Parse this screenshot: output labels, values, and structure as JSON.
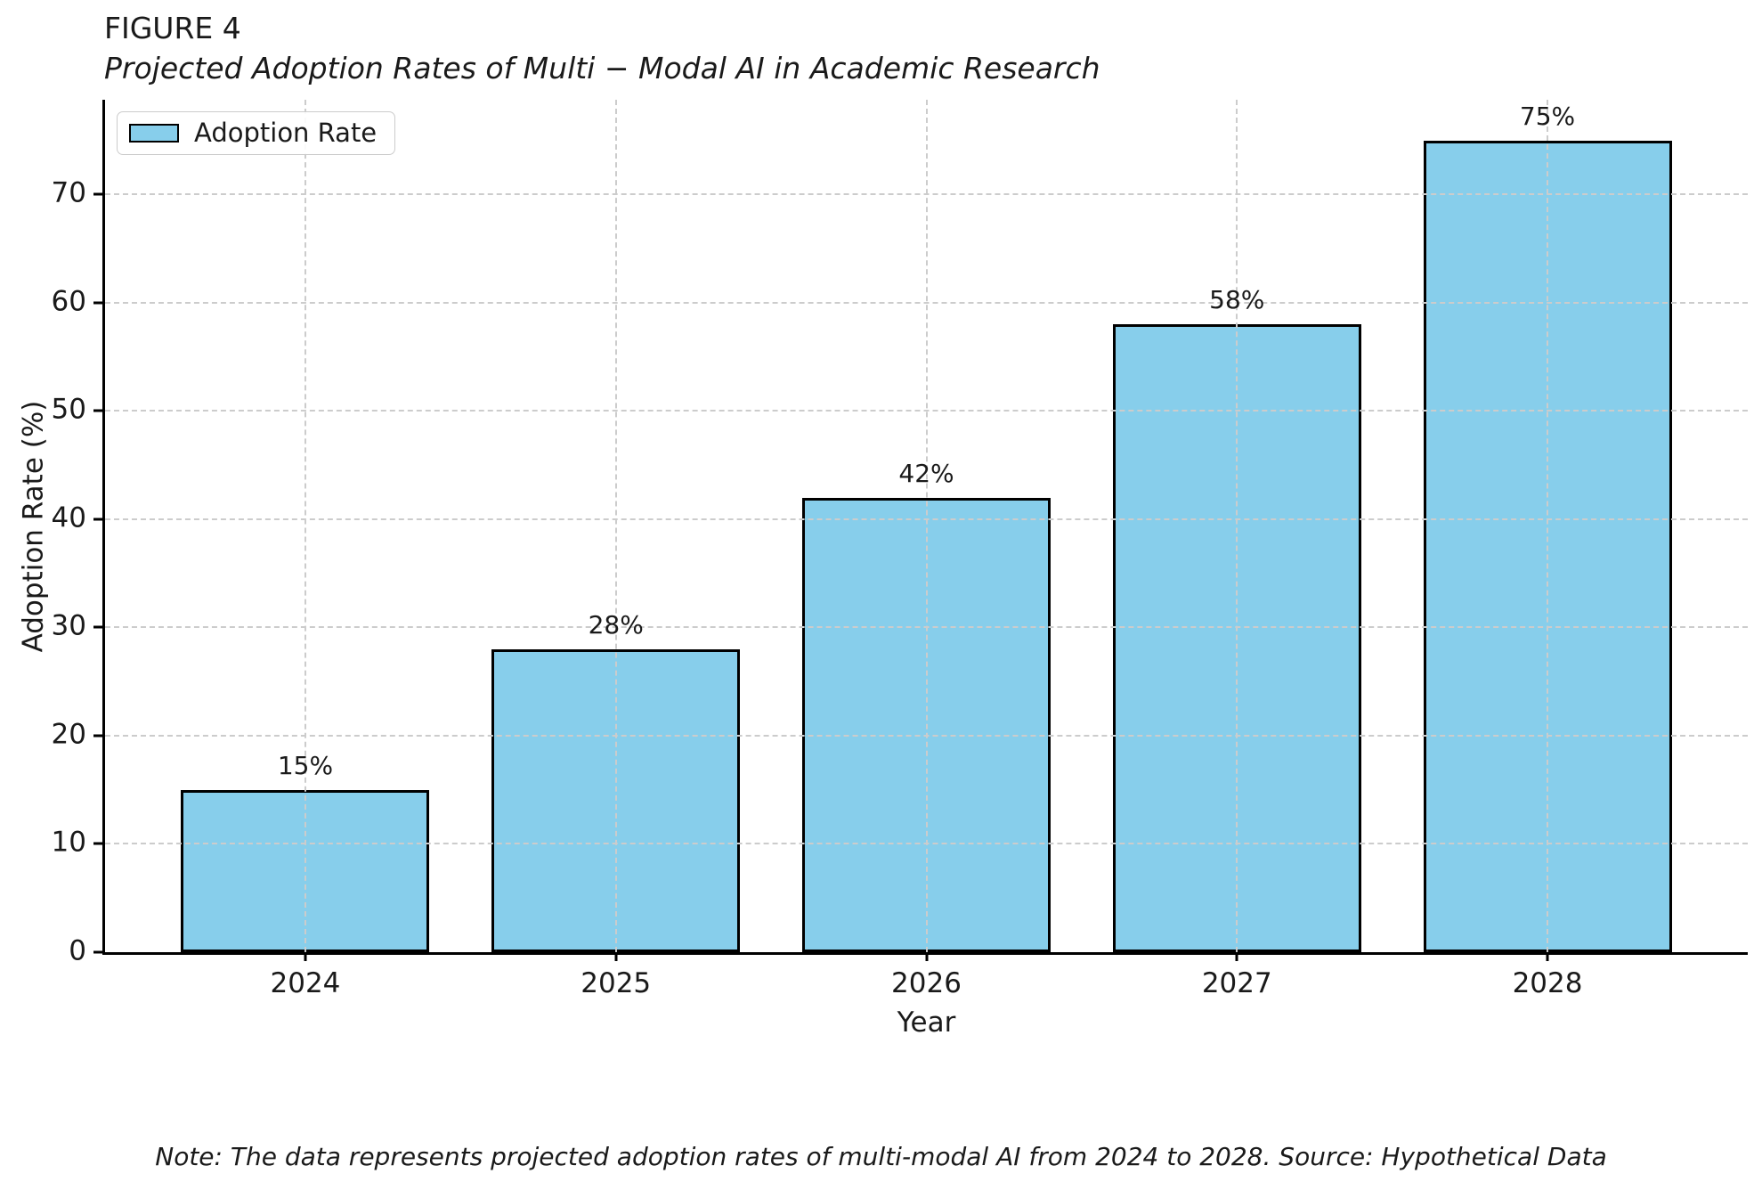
{
  "figure": {
    "label": "FIGURE 4",
    "note": "Note: The data represents projected adoption rates of multi-modal AI from 2024 to 2028. Source: Hypothetical Data"
  },
  "chart_data": {
    "type": "bar",
    "title": "Projected Adoption Rates of Multi − Modal AI in Academic Research",
    "categories": [
      "2024",
      "2025",
      "2026",
      "2027",
      "2028"
    ],
    "values": [
      15,
      28,
      42,
      58,
      75
    ],
    "bar_labels": [
      "15%",
      "28%",
      "42%",
      "58%",
      "75%"
    ],
    "xlabel": "Year",
    "ylabel": "Adoption Rate (%)",
    "ylim": [
      0,
      78.75
    ],
    "yticks": [
      0,
      10,
      20,
      30,
      40,
      50,
      60,
      70
    ],
    "bar_width_fraction": 0.8,
    "x_padding": 0.645,
    "grid": true,
    "grid_style": "dashed",
    "legend": {
      "position": "upper left",
      "entries": [
        "Adoption Rate"
      ]
    },
    "colors": {
      "bar_fill": "#87CEEB",
      "bar_edge": "#000000",
      "grid": "#CCCCCC",
      "axis": "#000000",
      "text": "#1A1A1A"
    }
  }
}
